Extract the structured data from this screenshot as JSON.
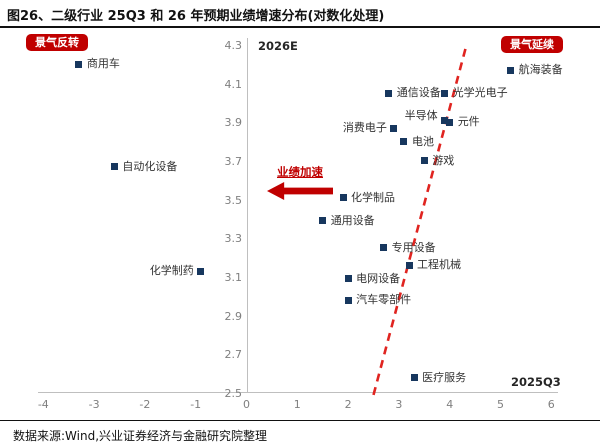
{
  "title": "图26、二级行业 25Q3 和 26 年预期业绩增速分布(对数化处理)",
  "source": "数据来源:Wind,兴业证券经济与金融研究院整理",
  "badges": {
    "left": "景气反转",
    "right": "景气延续"
  },
  "annotations": {
    "y_axis_label": "2026E",
    "x_axis_label": "2025Q3",
    "arrow_label": "业绩加速"
  },
  "colors": {
    "marker": "#17375e",
    "badge": "#c00000",
    "arrow": "#c00000",
    "trendline": "#e02420",
    "axis": "#bfbfbf",
    "tick_text": "#7f7f7f"
  },
  "chart_data": {
    "type": "scatter",
    "title": "二级行业 25Q3 和 26 年预期业绩增速分布(对数化处理)",
    "xlabel": "2025Q3",
    "ylabel": "2026E",
    "xlim": [
      -4,
      6
    ],
    "ylim": [
      2.5,
      4.3
    ],
    "x_ticks": [
      -4,
      -3,
      -2,
      -1,
      0,
      1,
      2,
      3,
      4,
      5,
      6
    ],
    "y_ticks": [
      4.3,
      4.1,
      3.9,
      3.7,
      3.5,
      3.3,
      3.1,
      2.9,
      2.7,
      2.5
    ],
    "grid": false,
    "points": [
      {
        "label": "商用车",
        "x": -3.3,
        "y": 4.2,
        "label_side": "right"
      },
      {
        "label": "自动化设备",
        "x": -2.6,
        "y": 3.67,
        "label_side": "right"
      },
      {
        "label": "化学制药",
        "x": -0.9,
        "y": 3.13,
        "label_side": "left"
      },
      {
        "label": "化学制品",
        "x": 1.9,
        "y": 3.51,
        "label_side": "right"
      },
      {
        "label": "通用设备",
        "x": 1.5,
        "y": 3.39,
        "label_side": "right"
      },
      {
        "label": "专用设备",
        "x": 2.7,
        "y": 3.25,
        "label_side": "right"
      },
      {
        "label": "工程机械",
        "x": 3.2,
        "y": 3.16,
        "label_side": "right"
      },
      {
        "label": "电网设备",
        "x": 2.0,
        "y": 3.09,
        "label_side": "right"
      },
      {
        "label": "汽车零部件",
        "x": 2.0,
        "y": 2.98,
        "label_side": "right"
      },
      {
        "label": "医疗服务",
        "x": 3.3,
        "y": 2.58,
        "label_side": "right"
      },
      {
        "label": "消费电子",
        "x": 2.9,
        "y": 3.87,
        "label_side": "left"
      },
      {
        "label": "半导体",
        "x": 3.9,
        "y": 3.91,
        "label_side": "left",
        "label_dy": -4
      },
      {
        "label": "元件",
        "x": 4.0,
        "y": 3.9,
        "label_side": "right"
      },
      {
        "label": "电池",
        "x": 3.1,
        "y": 3.8,
        "label_side": "right"
      },
      {
        "label": "游戏",
        "x": 3.5,
        "y": 3.7,
        "label_side": "right"
      },
      {
        "label": "通信设备",
        "x": 2.8,
        "y": 4.05,
        "label_side": "right"
      },
      {
        "label": "光学光电子",
        "x": 3.9,
        "y": 4.05,
        "label_side": "right"
      },
      {
        "label": "航海装备",
        "x": 5.2,
        "y": 4.17,
        "label_side": "right"
      }
    ],
    "trendline": {
      "style": "dashed",
      "color": "#e02420",
      "from": [
        2.5,
        2.49
      ],
      "to": [
        4.33,
        4.3
      ]
    }
  }
}
